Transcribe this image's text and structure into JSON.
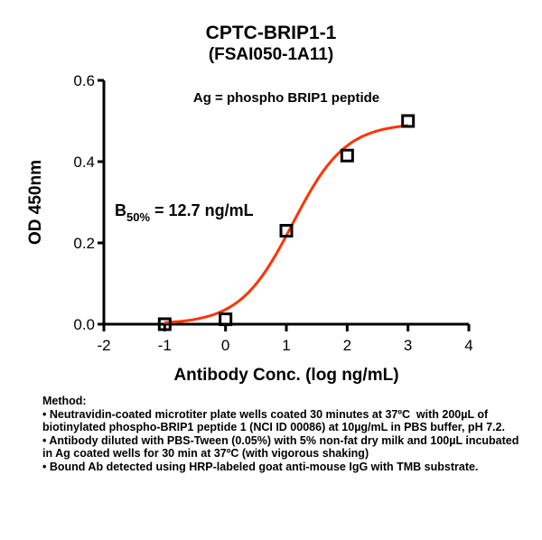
{
  "chart_data": {
    "type": "scatter",
    "title": "CPTC-BRIP1-1",
    "subtitle": "(FSAI050-1A11)",
    "annotation": "Ag = phospho BRIP1 peptide",
    "b50_label": {
      "prefix": "B",
      "sub": "50%",
      "rest": " = 12.7 ng/mL"
    },
    "xlabel": "Antibody Conc. (log ng/mL)",
    "ylabel": "OD 450nm",
    "xlim": [
      -2,
      4
    ],
    "ylim": [
      0,
      0.6
    ],
    "xticks": [
      -2,
      -1,
      0,
      1,
      2,
      3,
      4
    ],
    "yticks": [
      "0.0",
      "0.2",
      "0.4",
      "0.6"
    ],
    "grid": false,
    "points": {
      "x": [
        -1,
        0,
        1,
        2,
        3
      ],
      "y": [
        0.0,
        0.012,
        0.23,
        0.415,
        0.5
      ]
    },
    "fit": {
      "type": "4PL",
      "bottom": 0.0,
      "top": 0.495,
      "logEC50": 1.104,
      "hill": 1.0,
      "xrange": [
        -1,
        3
      ],
      "color": "#ff3300"
    },
    "marker_color": "#000000"
  },
  "method": {
    "heading": "Method:",
    "lines": [
      "• Neutravidin-coated microtiter plate wells coated 30 minutes at 37ºC  with 200µL of biotinylated phospho-BRIP1 peptide 1 (NCI ID 00086) at 10µg/mL in PBS buffer, pH 7.2.",
      "• Antibody diluted with PBS-Tween (0.05%) with 5% non-fat dry milk and 100µL incubated in Ag coated wells for 30 min at 37ºC (with vigorous shaking)",
      "• Bound Ab detected using HRP-labeled goat anti-mouse IgG with TMB substrate."
    ]
  }
}
